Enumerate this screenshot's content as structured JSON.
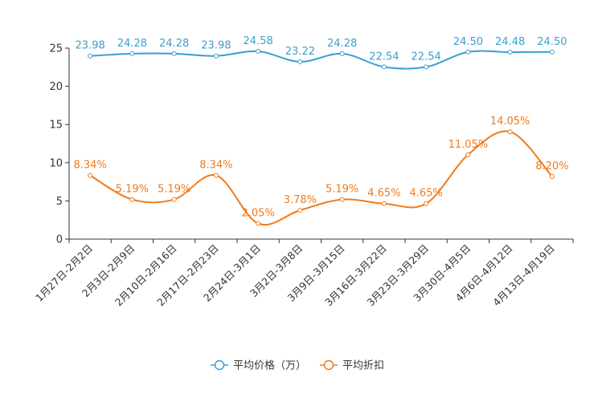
{
  "chart_data": {
    "type": "line",
    "title": "",
    "xlabel": "",
    "ylabel": "",
    "ylim": [
      0,
      25
    ],
    "yticks": [
      0,
      5,
      10,
      15,
      20,
      25
    ],
    "categories": [
      "1月27日-2月2日",
      "2月3日-2月9日",
      "2月10日-2月16日",
      "2月17日-2月23日",
      "2月24日-3月1日",
      "3月2日-3月8日",
      "3月9日-3月15日",
      "3月16日-3月22日",
      "3月23日-3月29日",
      "3月30日-4月5日",
      "4月6日-4月12日",
      "4月13日-4月19日"
    ],
    "series": [
      {
        "name": "平均价格（万）",
        "color": "#3a9fcf",
        "values": [
          23.98,
          24.28,
          24.28,
          23.98,
          24.58,
          23.22,
          24.28,
          22.54,
          22.54,
          24.5,
          24.48,
          24.5
        ],
        "labels": [
          "23.98",
          "24.28",
          "24.28",
          "23.98",
          "24.58",
          "23.22",
          "24.28",
          "22.54",
          "22.54",
          "24.50",
          "24.48",
          "24.50"
        ]
      },
      {
        "name": "平均折扣",
        "color": "#f07a1a",
        "values": [
          8.34,
          5.19,
          5.19,
          8.34,
          2.05,
          3.78,
          5.19,
          4.65,
          4.65,
          11.05,
          14.05,
          8.2
        ],
        "labels": [
          "8.34%",
          "5.19%",
          "5.19%",
          "8.34%",
          "2.05%",
          "3.78%",
          "5.19%",
          "4.65%",
          "4.65%",
          "11.05%",
          "14.05%",
          "8.20%"
        ]
      }
    ],
    "legend_position": "bottom-center",
    "grid": false
  }
}
